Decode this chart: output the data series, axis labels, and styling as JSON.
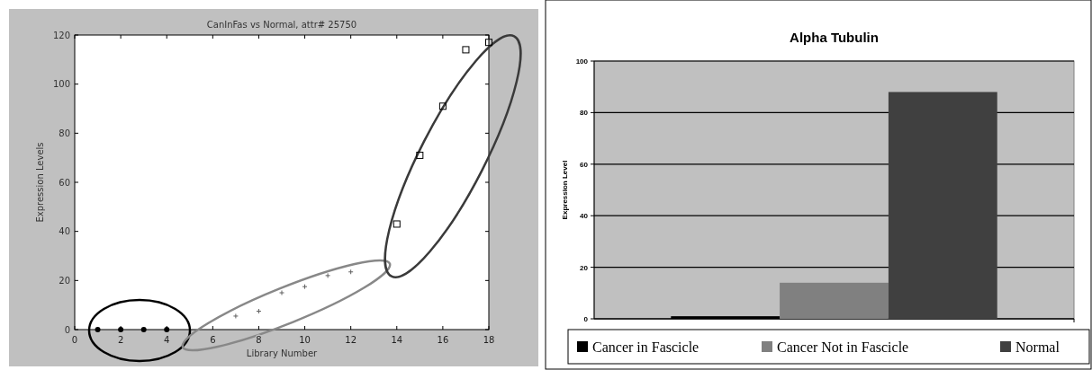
{
  "chart_data": [
    {
      "type": "scatter",
      "title": "CanInFas vs Normal, attr# 25750",
      "xlabel": "Library Number",
      "ylabel": "Expression Levels",
      "xlim": [
        0,
        18
      ],
      "ylim": [
        0,
        120
      ],
      "xticks": [
        0,
        2,
        4,
        6,
        8,
        10,
        12,
        14,
        16,
        18
      ],
      "yticks": [
        0,
        20,
        40,
        60,
        80,
        100,
        120
      ],
      "grid": false,
      "series": [
        {
          "color": "#000000",
          "marker": "circle",
          "x": [
            1,
            2,
            3,
            4
          ],
          "values": [
            0,
            0,
            0,
            0
          ]
        },
        {
          "color": "#606060",
          "marker": "cross",
          "x": [
            7,
            8,
            9,
            10,
            11,
            12
          ],
          "values": [
            5.5,
            7.5,
            15,
            17.5,
            22,
            23.5
          ]
        },
        {
          "color": "#000000",
          "marker": "square",
          "x": [
            14,
            15,
            16,
            17,
            18
          ],
          "values": [
            43,
            71,
            91,
            114,
            117
          ]
        }
      ]
    },
    {
      "type": "bar",
      "title": "Alpha Tubulin",
      "ylabel": "Expression Level",
      "categories": [
        null
      ],
      "ylim": [
        0,
        100
      ],
      "yticks": [
        0,
        20,
        40,
        60,
        80,
        100
      ],
      "grid": "y",
      "legend": "bottom",
      "series": [
        {
          "name": "Cancer in Fascicle",
          "color": "#000000",
          "values": [
            1
          ]
        },
        {
          "name": "Cancer Not in Fascicle",
          "color": "#808080",
          "values": [
            14
          ]
        },
        {
          "name": "Normal",
          "color": "#404040",
          "values": [
            88
          ]
        }
      ]
    }
  ]
}
